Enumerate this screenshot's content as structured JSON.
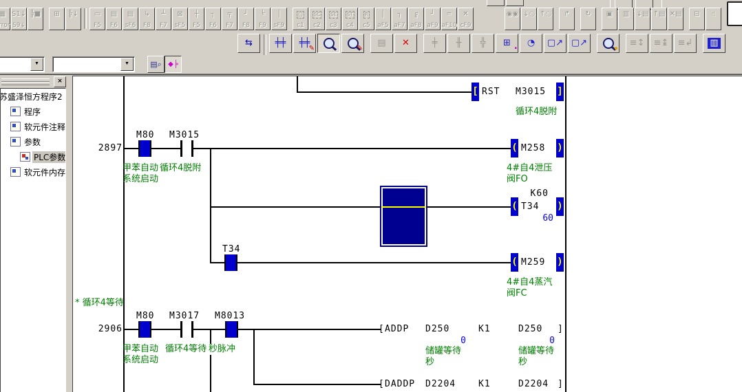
{
  "colors": {
    "comment_green": "#008000",
    "value_blue": "#0000ff",
    "energized_blue": "#0000cc",
    "cursor_navy": "#000090",
    "highlight_yellow": "#ffff00",
    "chrome_gray": "#d4d0c8"
  },
  "sym": {
    "lb": "[",
    "rb": "]",
    "lp": "(",
    "rp": ")",
    "close": "×",
    "combo_arrow": "▼"
  },
  "toolbar_row1": [
    {
      "t": "btn",
      "name": "error-jump-icon",
      "glyph": "▦",
      "label": "Error",
      "cut": true
    },
    {
      "t": "btn",
      "name": "step-run-icon",
      "glyph": "S1↓",
      "label": "S9↓"
    },
    {
      "t": "btn",
      "name": "ladder-block-icon",
      "glyph": "╠■",
      "label": ""
    },
    {
      "t": "gap"
    },
    {
      "t": "btn",
      "name": "window-grid-icon",
      "glyph": "⊞",
      "label": ""
    },
    {
      "t": "btn",
      "name": "project-tree-icon",
      "glyph": "╠↓",
      "label": ""
    },
    {
      "t": "sep"
    },
    {
      "t": "btn",
      "name": "open-contact-icon",
      "glyph": "▭",
      "label": "F5"
    },
    {
      "t": "btn",
      "name": "closed-contact-icon",
      "glyph": "▤",
      "label": "F6"
    },
    {
      "t": "btn",
      "name": "parallel-contact-icon",
      "glyph": "▤",
      "label": "sF6"
    },
    {
      "t": "btn",
      "name": "branch-out-icon",
      "glyph": "↳",
      "label": "F8"
    },
    {
      "t": "btn",
      "name": "vertical-pin-icon",
      "glyph": "┴",
      "label": "F7"
    },
    {
      "t": "btn",
      "name": "coil-icon",
      "glyph": "⊠",
      "label": "sF5"
    },
    {
      "t": "btn",
      "name": "cross-line-icon",
      "glyph": "┼",
      "label": "F5"
    },
    {
      "t": "btn",
      "name": "corner-line-icon",
      "glyph": "┐",
      "label": "F6"
    },
    {
      "t": "btn",
      "name": "top-line-icon",
      "glyph": "╤",
      "label": "F7"
    },
    {
      "t": "btn",
      "name": "bottom-corner-icon",
      "glyph": "┘",
      "label": "F8"
    },
    {
      "t": "btn",
      "name": "double-line-icon",
      "glyph": "╘",
      "label": "F9"
    },
    {
      "t": "btn",
      "name": "vertical-line-icon",
      "glyph": "│",
      "label": "sF9"
    },
    {
      "t": "gap"
    },
    {
      "t": "btn",
      "name": "dashed-box-icon",
      "glyph": "▢",
      "label": "c1",
      "dashed": true
    },
    {
      "t": "btn",
      "name": "sc-step-icon",
      "glyph": "SC",
      "label": "c2",
      "dashed": true
    },
    {
      "t": "btn",
      "name": "se-step-icon",
      "glyph": "SE",
      "label": "c3",
      "dashed": true
    },
    {
      "t": "btn",
      "name": "st-step-icon",
      "glyph": "ST",
      "label": "c4",
      "dashed": true
    },
    {
      "t": "btn",
      "name": "r-step-icon",
      "glyph": "R",
      "label": "c5",
      "dashed": true
    },
    {
      "t": "btn",
      "name": "alt-vline-icon",
      "glyph": "│",
      "label": "aF5"
    },
    {
      "t": "btn",
      "name": "alt-corner-icon",
      "glyph": "┐",
      "label": "aF7"
    },
    {
      "t": "btn",
      "name": "alt-rail-icon",
      "glyph": "╔",
      "label": "aF8"
    },
    {
      "t": "btn",
      "name": "alt-corner2-icon",
      "glyph": "┘",
      "label": "aF9"
    },
    {
      "t": "btn",
      "name": "alt-hline-icon",
      "glyph": "═",
      "label": "aF10"
    },
    {
      "t": "btn",
      "name": "delete-line-icon",
      "glyph": "✕",
      "label": "cF9"
    },
    {
      "t": "gap2"
    },
    {
      "t": "btn",
      "name": "find-icon",
      "glyph": "◉◉",
      "label": ""
    },
    {
      "t": "btn",
      "name": "find-down-icon",
      "glyph": "↓◌",
      "label": ""
    },
    {
      "t": "btn",
      "name": "find-up-icon",
      "glyph": "↑◌",
      "label": ""
    },
    {
      "t": "gap"
    },
    {
      "t": "btn",
      "name": "insert-row-icon",
      "glyph": "↱",
      "label": ""
    },
    {
      "t": "gap"
    },
    {
      "t": "btn",
      "name": "replace-icon",
      "glyph": "↻",
      "label": ""
    },
    {
      "t": "gap"
    },
    {
      "t": "btn",
      "name": "select-block-icon",
      "glyph": "▣",
      "label": ""
    },
    {
      "t": "btn",
      "name": "copy-block-icon",
      "glyph": "▥",
      "label": ""
    },
    {
      "t": "btn",
      "name": "paste-down-icon",
      "glyph": "↓▤",
      "label": ""
    },
    {
      "t": "btn",
      "name": "paste-up-icon",
      "glyph": "↑▤",
      "label": ""
    },
    {
      "t": "btn",
      "name": "cut-block-icon",
      "glyph": "✕▤",
      "label": ""
    },
    {
      "t": "gap"
    },
    {
      "t": "btn",
      "name": "print-icon",
      "glyph": "⊟",
      "label": ""
    },
    {
      "t": "btn",
      "name": "pan-icon",
      "glyph": "☝",
      "label": ""
    }
  ],
  "toolbar_row2": [
    {
      "t": "btn",
      "name": "ladder-list-toggle-icon",
      "glyph": "⇆",
      "color": "#0000bb"
    },
    {
      "t": "sep"
    },
    {
      "t": "btn",
      "name": "read-mode-icon",
      "glyph": "╪╪",
      "color": "#2020cc"
    },
    {
      "t": "btn",
      "name": "write-mode-icon",
      "glyph": "╪╪",
      "color": "#2020cc",
      "g2": "✎",
      "g2color": "#cc0000"
    },
    {
      "t": "btn",
      "name": "monitor-mode-icon",
      "kind": "mag",
      "pressed": true
    },
    {
      "t": "btn",
      "name": "monitor-write-mode-icon",
      "kind": "mag",
      "g2": "✎",
      "g2color": "#cc0000"
    },
    {
      "t": "gap"
    },
    {
      "t": "btn",
      "name": "device-test-icon",
      "glyph": "▤",
      "color": "#9a9a92"
    },
    {
      "t": "btn",
      "name": "stop-monitor-icon",
      "glyph": "✕",
      "color": "#dd0000"
    },
    {
      "t": "gap"
    },
    {
      "t": "btn",
      "name": "gray-tool1-icon",
      "glyph": "╪",
      "color": "#9a9a92"
    },
    {
      "t": "btn",
      "name": "gray-tool2-icon",
      "glyph": "╫",
      "color": "#9a9a92"
    },
    {
      "t": "btn",
      "name": "gray-tool3-icon",
      "glyph": "╬",
      "color": "#9a9a92"
    },
    {
      "t": "btn",
      "name": "program-check-icon",
      "glyph": "⊞",
      "color": "#2020cc",
      "g2": "▪",
      "g2color": "#cc00cc"
    },
    {
      "t": "btn",
      "name": "time-chart-icon",
      "glyph": "◔",
      "color": "#2020cc"
    },
    {
      "t": "btn",
      "name": "jump-source-icon",
      "glyph": "▢↗",
      "color": "#2020cc"
    },
    {
      "t": "btn",
      "name": "jump-dest-icon",
      "glyph": "▢↗",
      "color": "#2020cc"
    },
    {
      "t": "gap"
    },
    {
      "t": "btn",
      "name": "find-device-icon",
      "kind": "mag",
      "g2": "●",
      "g2color": "#e0a000"
    },
    {
      "t": "gap"
    },
    {
      "t": "btn",
      "name": "comment-gray1-icon",
      "glyph": "≡↕",
      "color": "#9a9a92"
    },
    {
      "t": "btn",
      "name": "comment-gray2-icon",
      "glyph": "≡↨",
      "color": "#9a9a92"
    },
    {
      "t": "btn",
      "name": "comment-gray3-icon",
      "glyph": "≡↲",
      "color": "#9a9a92"
    },
    {
      "t": "gap"
    },
    {
      "t": "btn",
      "name": "entry-monitor-icon",
      "glyph": "▥",
      "color": "#ffffff",
      "bg": "#2020cc"
    }
  ],
  "toolbar_row3": {
    "combo1_value": "",
    "combo2_value": "",
    "doc_find_glyph": "▤⌕",
    "nav_tree_glyph": "◆╞",
    "nav_pressed": true
  },
  "tree": {
    "root": {
      "label": "苏盛泽恒方程序2",
      "name": "tree-root-project"
    },
    "items": [
      {
        "label": "程序",
        "name": "tree-item-program",
        "icon": "doc-icon",
        "indent": 1
      },
      {
        "label": "软元件注释",
        "name": "tree-item-device-comment",
        "icon": "doc-icon",
        "indent": 1
      },
      {
        "label": "参数",
        "name": "tree-item-parameter",
        "icon": "doc-icon",
        "indent": 1
      },
      {
        "label": "PLC参数",
        "name": "tree-item-plc-parameter",
        "icon": "plc-icon",
        "indent": 2,
        "selected": true
      },
      {
        "label": "软元件内存",
        "name": "tree-item-device-memory",
        "icon": "doc-icon",
        "indent": 1
      }
    ]
  },
  "ladder": {
    "rst_rung": {
      "instruction": "RST",
      "operand": "M3015",
      "comment": "循环4脱附"
    },
    "rung_2897": {
      "step": "2897",
      "contact1": {
        "label": "M80",
        "comment": "甲苯自动\n系统启动"
      },
      "contact2": {
        "label": "M3015",
        "comment": "循环4脱附"
      },
      "coil": {
        "label": "M258",
        "comment": "4#自4泄压\n阀FO"
      }
    },
    "timer_rung": {
      "preset": "K60",
      "coil": "T34",
      "current": "60"
    },
    "t34_rung": {
      "contact": "T34",
      "coil": {
        "label": "M259",
        "comment": "4#自4蒸汽\n阀FC"
      }
    },
    "statement": "* 循环4等待",
    "rung_2906": {
      "step": "2906",
      "contact1": {
        "label": "M80",
        "comment": "甲苯自动\n系统启动"
      },
      "contact2": {
        "label": "M3017",
        "comment": "循环4等待"
      },
      "contact3": {
        "label": "M8013",
        "comment": "秒脉冲"
      },
      "addp": {
        "instruction": "ADDP",
        "source": "D250",
        "addend": "K1",
        "dest": "D250",
        "source_value": "0",
        "dest_value": "0",
        "source_comment": "储罐等待\n秒",
        "dest_comment": "储罐等待\n秒"
      },
      "daddp": {
        "instruction": "DADDP",
        "source": "D2204",
        "addend": "K1",
        "dest": "D2204"
      }
    }
  }
}
